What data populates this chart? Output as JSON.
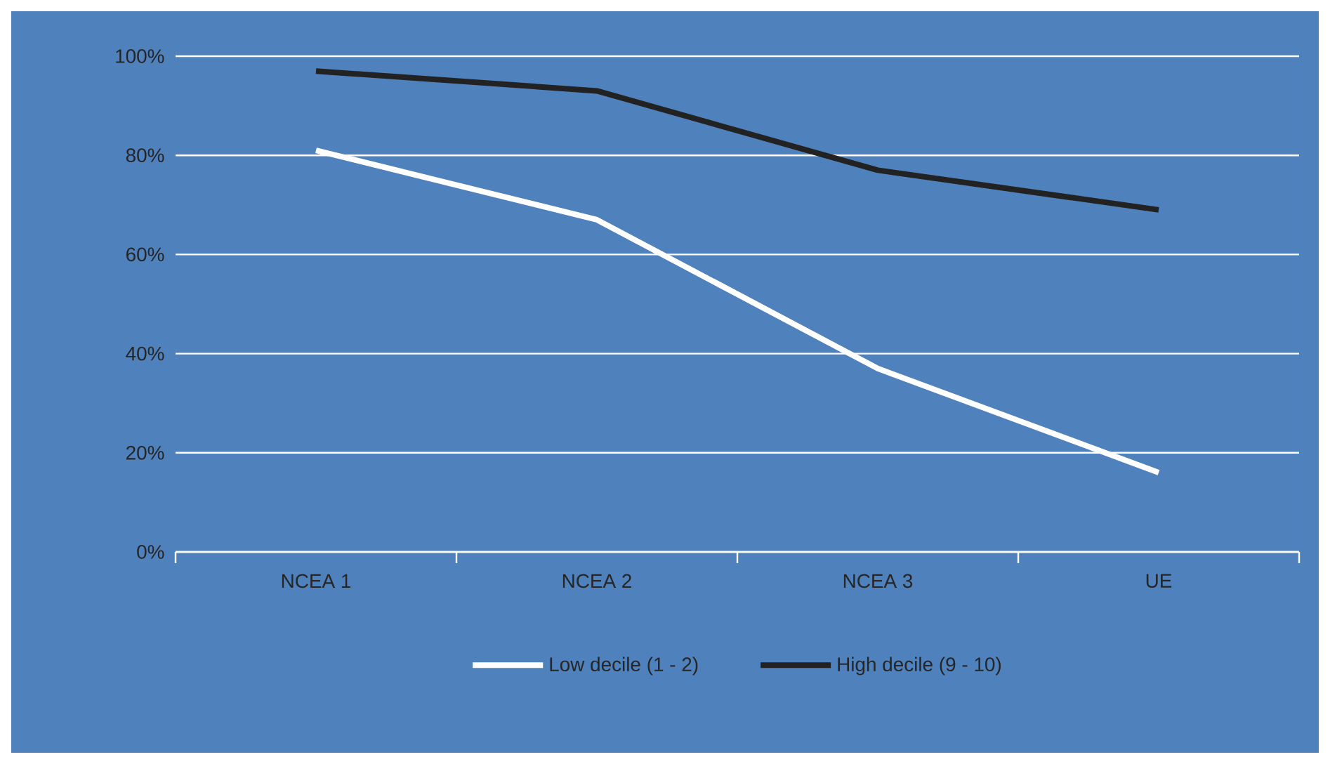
{
  "chart_data": {
    "type": "line",
    "categories": [
      "NCEA 1",
      "NCEA 2",
      "NCEA 3",
      "UE"
    ],
    "series": [
      {
        "name": "Low decile (1 - 2)",
        "color": "#ffffff",
        "values": [
          81,
          67,
          37,
          16
        ]
      },
      {
        "name": "High decile (9 - 10)",
        "color": "#222222",
        "values": [
          97,
          93,
          77,
          69
        ]
      }
    ],
    "ylim": [
      0,
      100
    ],
    "yticks": [
      {
        "value": 0,
        "label": "0%"
      },
      {
        "value": 20,
        "label": "20%"
      },
      {
        "value": 40,
        "label": "40%"
      },
      {
        "value": 60,
        "label": "60%"
      },
      {
        "value": 80,
        "label": "80%"
      },
      {
        "value": 100,
        "label": "100%"
      }
    ],
    "grid": "y",
    "legend": "bottom",
    "marker": "none",
    "line_style": "solid"
  }
}
